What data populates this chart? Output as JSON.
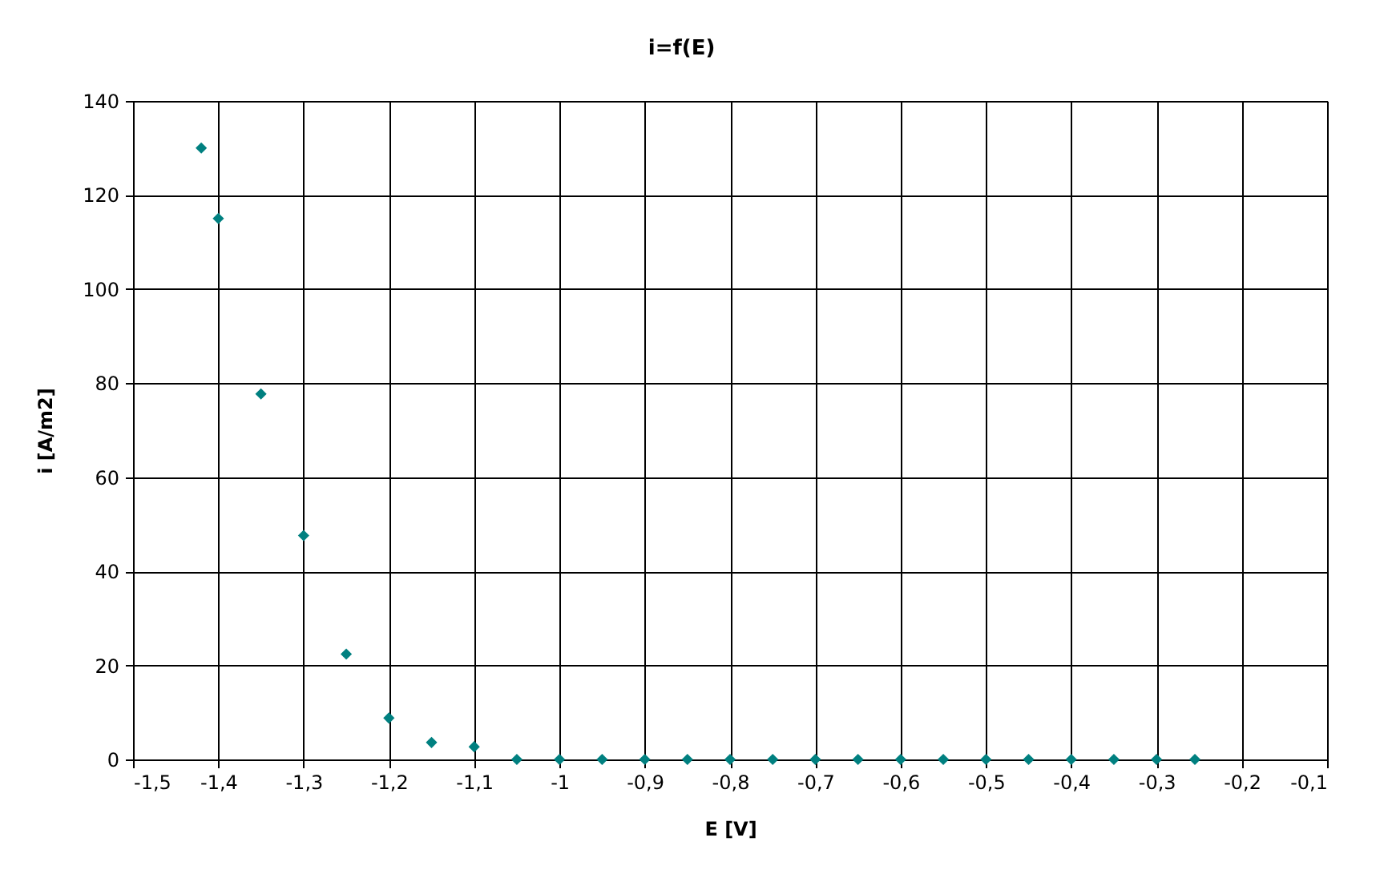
{
  "chart_data": {
    "type": "scatter",
    "title": "i=f(E)",
    "xlabel": "E [V]",
    "ylabel": "i [A/m2]",
    "x": [
      -1.42,
      -1.4,
      -1.35,
      -1.3,
      -1.25,
      -1.2,
      -1.15,
      -1.1,
      -1.05,
      -1.0,
      -0.95,
      -0.9,
      -0.85,
      -0.8,
      -0.75,
      -0.7,
      -0.65,
      -0.6,
      -0.55,
      -0.5,
      -0.45,
      -0.4,
      -0.35,
      -0.3,
      -0.255
    ],
    "series": [
      {
        "color": "#008080",
        "values": [
          130,
          115,
          77.7,
          47.6,
          22.4,
          8.8,
          3.6,
          2.7,
          0,
          0,
          0,
          0,
          0,
          0,
          0,
          0,
          0,
          0,
          0,
          0,
          0,
          0,
          0,
          0,
          0
        ]
      }
    ],
    "marker": "diamond",
    "xlim": [
      -1.5,
      -0.1
    ],
    "xticks": [
      {
        "value": -1.5,
        "label": "-1,5"
      },
      {
        "value": -1.4,
        "label": "-1,4"
      },
      {
        "value": -1.3,
        "label": "-1,3"
      },
      {
        "value": -1.2,
        "label": "-1,2"
      },
      {
        "value": -1.1,
        "label": "-1,1"
      },
      -1,
      {
        "value": -0.9,
        "label": "-0,9"
      },
      {
        "value": -0.8,
        "label": "-0,8"
      },
      {
        "value": -0.7,
        "label": "-0,7"
      },
      {
        "value": -0.6,
        "label": "-0,6"
      },
      {
        "value": -0.5,
        "label": "-0,5"
      },
      {
        "value": -0.4,
        "label": "-0,4"
      },
      {
        "value": -0.3,
        "label": "-0,3"
      },
      {
        "value": -0.2,
        "label": "-0,2"
      },
      {
        "value": -0.1,
        "label": "-0,1"
      }
    ],
    "ylim": [
      0,
      140
    ],
    "yticks": [
      0,
      20,
      40,
      60,
      80,
      100,
      120,
      140
    ],
    "grid": true
  }
}
